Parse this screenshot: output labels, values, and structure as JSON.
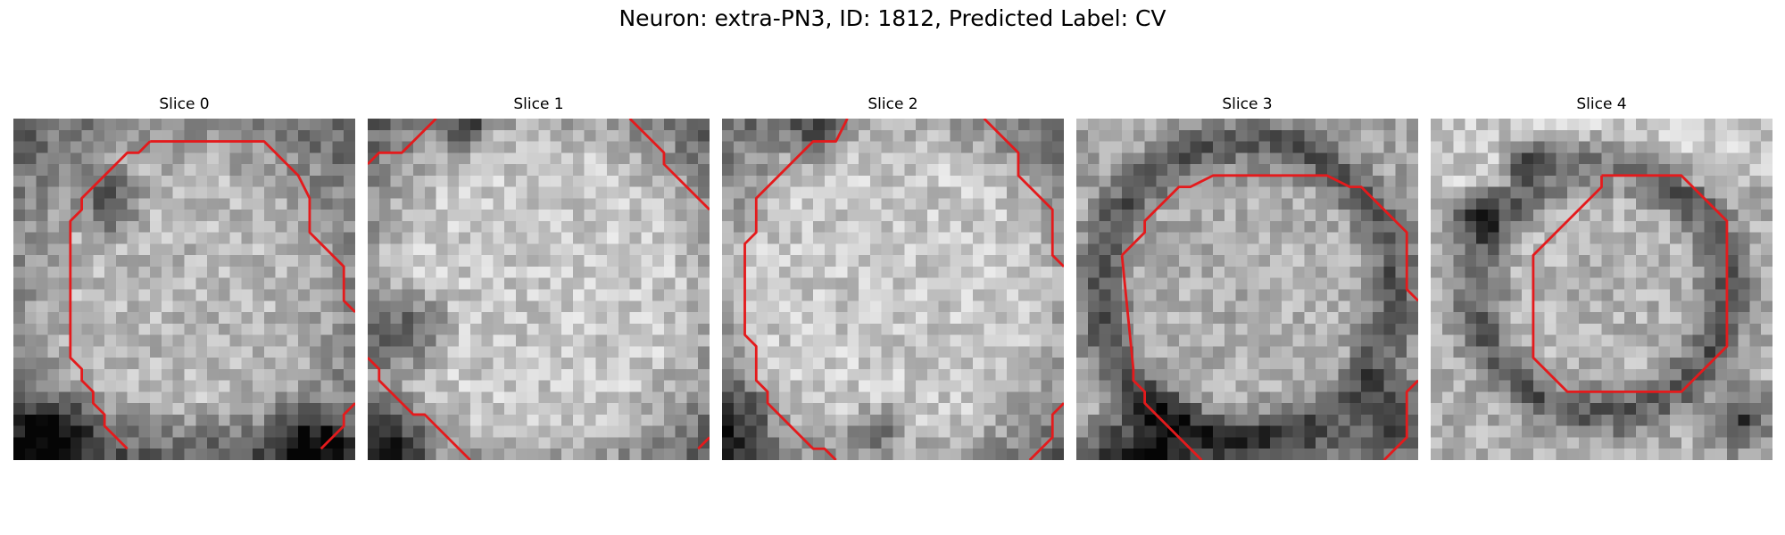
{
  "figure": {
    "title": "Neuron: extra-PN3, ID: 1812, Predicted Label: CV"
  },
  "slices": [
    {
      "label": "Slice 0",
      "profile": "soma-centered",
      "seed": 11,
      "dark": [
        [
          8,
          7,
          4
        ],
        [
          3,
          27,
          5
        ],
        [
          25,
          28,
          4
        ]
      ]
    },
    {
      "label": "Slice 1",
      "profile": "bright-large",
      "seed": 23,
      "dark": [
        [
          3,
          18,
          5
        ],
        [
          8,
          0,
          3
        ],
        [
          1,
          28,
          5
        ]
      ]
    },
    {
      "label": "Slice 2",
      "profile": "bright-large",
      "seed": 37,
      "dark": [
        [
          8,
          0,
          4
        ],
        [
          0,
          26,
          5
        ],
        [
          13,
          27,
          3
        ]
      ]
    },
    {
      "label": "Slice 3",
      "profile": "ring",
      "seed": 41,
      "dark": [
        [
          6,
          28,
          6
        ],
        [
          27,
          25,
          4
        ]
      ]
    },
    {
      "label": "Slice 4",
      "profile": "small-ring",
      "seed": 53,
      "dark": [
        [
          3,
          8,
          3
        ],
        [
          8,
          3,
          3
        ],
        [
          27,
          26,
          4
        ]
      ]
    }
  ],
  "overlay": {
    "contour_color": "#e41a1c"
  }
}
